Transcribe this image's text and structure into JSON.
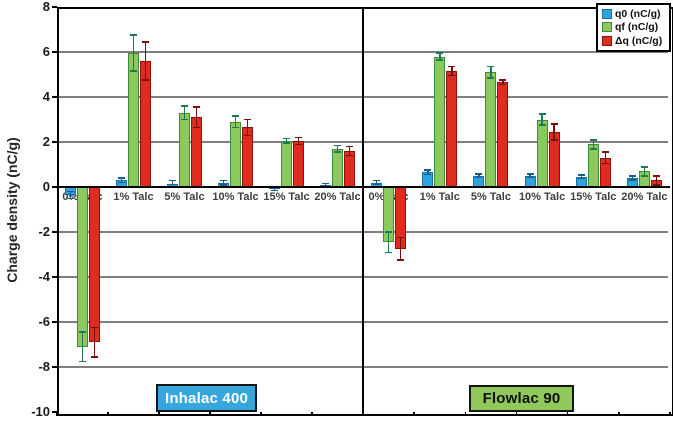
{
  "chart_data": {
    "type": "bar",
    "title": "",
    "xlabel": "",
    "ylabel": "Charge density (nC/g)",
    "ylim": [
      -10,
      8
    ],
    "ytick_interval": 2,
    "yticks": [
      8,
      6,
      4,
      2,
      0,
      -2,
      -4,
      -6,
      -8,
      -10
    ],
    "grid": true,
    "legend_position": "top-right",
    "categories": [
      "0% Talc",
      "1% Talc",
      "5% Talc",
      "10% Talc",
      "15% Talc",
      "20% Talc"
    ],
    "panels": [
      {
        "name": "Inhalac 400",
        "series": [
          {
            "key": "q0",
            "name": "q0 (nC/g)",
            "values": [
              -0.35,
              0.3,
              0.15,
              0.2,
              -0.1,
              0.1
            ],
            "errors": [
              0.15,
              0.1,
              0.15,
              0.1,
              0.05,
              0.05
            ]
          },
          {
            "key": "qf",
            "name": "qf (nC/g)",
            "values": [
              -7.1,
              5.95,
              3.3,
              2.9,
              2.05,
              1.7
            ],
            "errors": [
              0.65,
              0.8,
              0.3,
              0.25,
              0.1,
              0.15
            ]
          },
          {
            "key": "dq",
            "name": "Δq (nC/g)",
            "values": [
              -6.9,
              5.6,
              3.1,
              2.65,
              2.05,
              1.6
            ],
            "errors": [
              0.65,
              0.85,
              0.45,
              0.35,
              0.15,
              0.2
            ]
          }
        ]
      },
      {
        "name": "Flowlac 90",
        "series": [
          {
            "key": "q0",
            "name": "q0 (nC/g)",
            "values": [
              0.2,
              0.65,
              0.5,
              0.5,
              0.45,
              0.4
            ],
            "errors": [
              0.08,
              0.1,
              0.08,
              0.08,
              0.08,
              0.08
            ]
          },
          {
            "key": "qf",
            "name": "qf (nC/g)",
            "values": [
              -2.45,
              5.8,
              5.1,
              3.0,
              1.9,
              0.7
            ],
            "errors": [
              0.45,
              0.15,
              0.25,
              0.25,
              0.2,
              0.2
            ]
          },
          {
            "key": "dq",
            "name": "Δq (nC/g)",
            "values": [
              -2.75,
              5.15,
              4.65,
              2.45,
              1.3,
              0.3
            ],
            "errors": [
              0.5,
              0.2,
              0.1,
              0.35,
              0.25,
              0.2
            ]
          }
        ]
      }
    ],
    "legend": [
      {
        "key": "q0",
        "label": "q0 (nC/g)"
      },
      {
        "key": "qf",
        "label": "qf (nC/g)"
      },
      {
        "key": "dq",
        "label": "Δq (nC/g)"
      }
    ]
  },
  "colors": {
    "q0_fill": "#2FA3DC",
    "q0_border": "#1C6FA3",
    "q0_err": "#175E8C",
    "qf_fill": "#8BC95E",
    "qf_border": "#3E8C39",
    "qf_err": "#1F7A4D",
    "dq_fill": "#E02B20",
    "dq_border": "#8C130D",
    "dq_err": "#7A100B",
    "gridline": "#7F7F7F",
    "axis": "#000000",
    "panel_label_bg": [
      "#35A7DC",
      "#90C85A"
    ],
    "panel_label_text": [
      "#FFFFFF",
      "#111111"
    ]
  }
}
